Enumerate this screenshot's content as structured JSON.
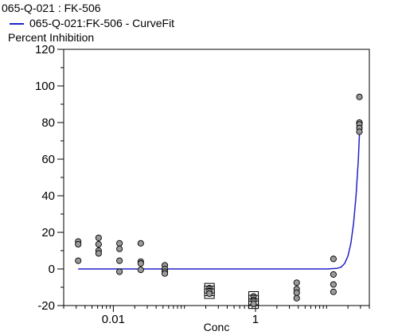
{
  "chart_data": {
    "type": "scatter",
    "title": "065-Q-021  : FK-506",
    "legend": {
      "position": "top-left",
      "entries": [
        {
          "label": "065-Q-021:FK-506 - CurveFit",
          "color": "#2020c8"
        }
      ]
    },
    "ylabel": "Percent Inhibition",
    "xlabel": "Conc",
    "xscale": "log",
    "xlim": [
      0.002,
      40
    ],
    "ylim": [
      -20,
      120
    ],
    "xticks": [
      0.01,
      1
    ],
    "xtick_labels": [
      "0.01",
      "1"
    ],
    "yticks": [
      -20,
      0,
      20,
      40,
      60,
      80,
      100,
      120
    ],
    "ytick_labels": [
      "-20",
      "0",
      "20",
      "40",
      "60",
      "80",
      "100",
      "120"
    ],
    "grid": false,
    "colors": {
      "point_fill": "#9a9a9a",
      "point_stroke": "#000000",
      "curve": "#2020c8"
    },
    "points": [
      {
        "x": 0.0032,
        "y": 15
      },
      {
        "x": 0.0032,
        "y": 13.5
      },
      {
        "x": 0.0032,
        "y": 4.5
      },
      {
        "x": 0.0062,
        "y": 17
      },
      {
        "x": 0.0062,
        "y": 13.5
      },
      {
        "x": 0.0062,
        "y": 10
      },
      {
        "x": 0.0062,
        "y": 8.5
      },
      {
        "x": 0.0122,
        "y": 14
      },
      {
        "x": 0.0122,
        "y": 11
      },
      {
        "x": 0.0122,
        "y": 4.5
      },
      {
        "x": 0.0122,
        "y": -1.5
      },
      {
        "x": 0.0243,
        "y": 14
      },
      {
        "x": 0.0243,
        "y": 4
      },
      {
        "x": 0.0243,
        "y": 3
      },
      {
        "x": 0.0243,
        "y": -0.5
      },
      {
        "x": 0.053,
        "y": 2
      },
      {
        "x": 0.053,
        "y": 0
      },
      {
        "x": 0.053,
        "y": -1.5
      },
      {
        "x": 0.053,
        "y": -2.5
      },
      {
        "x": 0.225,
        "y": -10.5,
        "excluded": true
      },
      {
        "x": 0.225,
        "y": -12,
        "excluded": true
      },
      {
        "x": 0.225,
        "y": -13.5,
        "excluded": true
      },
      {
        "x": 0.94,
        "y": -15,
        "excluded": true
      },
      {
        "x": 0.94,
        "y": -17,
        "excluded": true
      },
      {
        "x": 0.94,
        "y": -19,
        "excluded": true
      },
      {
        "x": 3.8,
        "y": -7.5
      },
      {
        "x": 3.8,
        "y": -11
      },
      {
        "x": 3.8,
        "y": -13
      },
      {
        "x": 3.8,
        "y": -16
      },
      {
        "x": 12.5,
        "y": 5.5
      },
      {
        "x": 12.5,
        "y": -3
      },
      {
        "x": 12.5,
        "y": -8.5
      },
      {
        "x": 12.5,
        "y": -12.5
      },
      {
        "x": 29,
        "y": 94
      },
      {
        "x": 29,
        "y": 80
      },
      {
        "x": 29,
        "y": 79
      },
      {
        "x": 29,
        "y": 77
      },
      {
        "x": 29,
        "y": 75
      }
    ],
    "curve": {
      "x": [
        0.0032,
        0.01,
        0.1,
        1,
        5,
        10,
        14,
        16,
        18,
        20,
        22,
        24,
        26,
        28,
        29.5
      ],
      "y": [
        0,
        0,
        0,
        0,
        0,
        0,
        0.3,
        1,
        3,
        7,
        14,
        25,
        40,
        60,
        80
      ]
    }
  }
}
